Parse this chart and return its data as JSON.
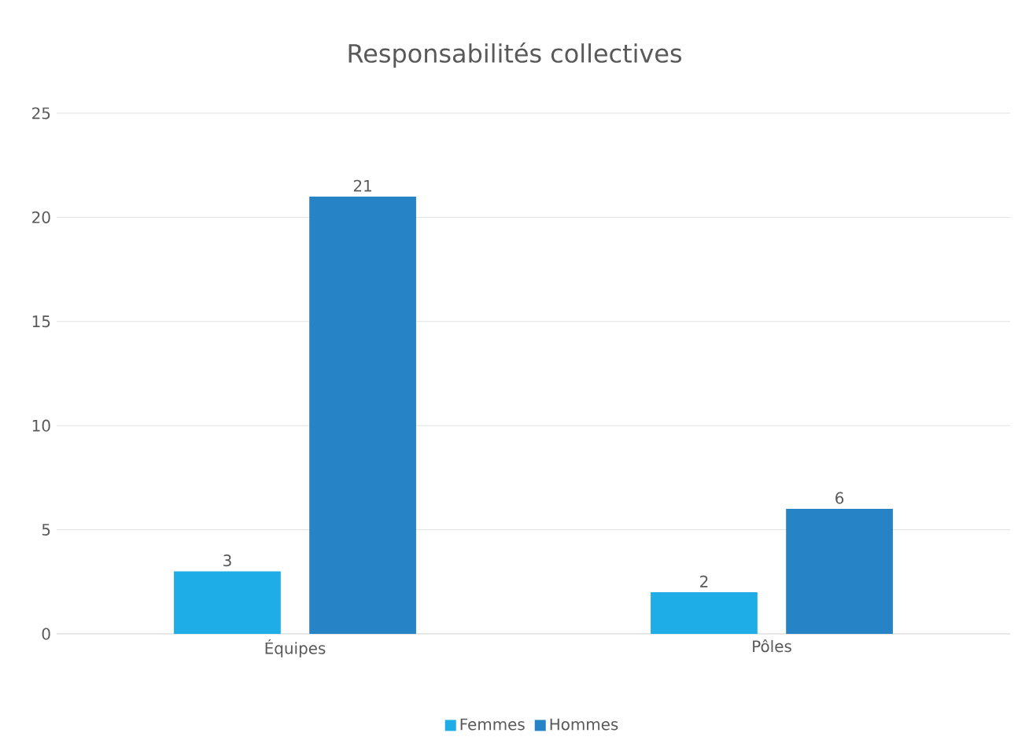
{
  "chart_data": {
    "type": "bar",
    "title": "Responsabilités collectives",
    "categories": [
      "Équipes",
      "Pôles"
    ],
    "series": [
      {
        "name": "Femmes",
        "color": "#1eade6",
        "values": [
          3,
          2
        ]
      },
      {
        "name": "Hommes",
        "color": "#2683c6",
        "values": [
          21,
          6
        ]
      }
    ],
    "ylim": [
      0,
      25
    ],
    "yticks": [
      0,
      5,
      10,
      15,
      20,
      25
    ],
    "grid": "y",
    "legend": "bottom",
    "data_labels": true
  }
}
